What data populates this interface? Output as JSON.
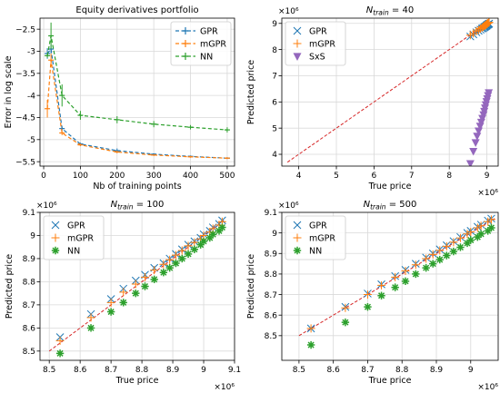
{
  "colors": {
    "GPR": "#1f77b4",
    "mGPR": "#ff7f0e",
    "NN": "#2ca02c",
    "SxS": "#9467bd",
    "diag": "#d62728",
    "grid": "#d9d9d9"
  },
  "chart_data": [
    {
      "type": "line",
      "title": "Equity derivatives portfolio",
      "xlabel": "Nb of training points",
      "ylabel": "Error in log scale",
      "xlim": [
        -10,
        520
      ],
      "ylim": [
        -5.6,
        -2.25
      ],
      "xticks": [
        0,
        100,
        200,
        300,
        400,
        500
      ],
      "yticks": [
        -5.5,
        -5.0,
        -4.5,
        -4.0,
        -3.5,
        -3.0,
        -2.5
      ],
      "grid": true,
      "legend": "top-right",
      "x": [
        10,
        20,
        50,
        100,
        200,
        300,
        400,
        500
      ],
      "series": [
        {
          "name": "GPR",
          "values": [
            -3.05,
            -2.95,
            -4.75,
            -5.1,
            -5.25,
            -5.33,
            -5.38,
            -5.42
          ],
          "err": [
            0.12,
            0.1,
            0.05,
            0.03,
            0.05,
            0.02,
            0.02,
            0.02
          ]
        },
        {
          "name": "mGPR",
          "values": [
            -4.3,
            -3.2,
            -4.85,
            -5.12,
            -5.28,
            -5.35,
            -5.39,
            -5.42
          ],
          "err": [
            0.2,
            0.15,
            0.05,
            0.03,
            0.03,
            0.02,
            0.02,
            0.02
          ]
        },
        {
          "name": "NN",
          "values": [
            -3.1,
            -2.65,
            -4.0,
            -4.45,
            -4.55,
            -4.65,
            -4.72,
            -4.78
          ],
          "err": [
            0.05,
            0.3,
            0.25,
            0.1,
            0.08,
            0.07,
            0.05,
            0.06
          ]
        }
      ]
    },
    {
      "type": "scatter",
      "title": "N_train = 40",
      "xlabel": "True price",
      "ylabel": "Predicted price",
      "xlim": [
        3.55,
        9.3
      ],
      "ylim": [
        3.55,
        9.2
      ],
      "xticks": [
        4,
        5,
        6,
        7,
        8,
        9
      ],
      "yticks": [
        4,
        5,
        6,
        7,
        8,
        9
      ],
      "x_multiplier": "×10⁶",
      "y_multiplier": "×10⁶",
      "grid": true,
      "legend": "top-left",
      "diagonal": [
        3.7,
        9.0
      ],
      "series": [
        {
          "name": "GPR",
          "marker": "x",
          "x": [
            8.56,
            8.64,
            8.72,
            8.78,
            8.83,
            8.87,
            8.9,
            8.93,
            8.95,
            8.97,
            8.99,
            9.0,
            9.02,
            9.03,
            9.05,
            9.06
          ],
          "y": [
            8.5,
            8.58,
            8.66,
            8.72,
            8.76,
            8.8,
            8.82,
            8.85,
            8.87,
            8.89,
            8.91,
            8.93,
            8.95,
            8.96,
            8.98,
            8.99
          ]
        },
        {
          "name": "mGPR",
          "marker": "+",
          "x": [
            8.56,
            8.64,
            8.72,
            8.78,
            8.83,
            8.87,
            8.9,
            8.93,
            8.95,
            8.97,
            8.99,
            9.0,
            9.02,
            9.03,
            9.05,
            9.06
          ],
          "y": [
            8.55,
            8.62,
            8.7,
            8.75,
            8.8,
            8.84,
            8.87,
            8.9,
            8.92,
            8.94,
            8.96,
            8.98,
            9.0,
            9.01,
            9.03,
            9.04
          ]
        },
        {
          "name": "SxS",
          "marker": "triangle-down",
          "x": [
            8.56,
            8.64,
            8.7,
            8.74,
            8.78,
            8.82,
            8.85,
            8.88,
            8.91,
            8.93,
            8.95,
            8.97,
            8.99,
            9.01,
            9.03,
            9.05
          ],
          "y": [
            3.65,
            4.12,
            4.45,
            4.7,
            4.9,
            5.08,
            5.23,
            5.38,
            5.52,
            5.65,
            5.78,
            5.9,
            6.02,
            6.13,
            6.25,
            6.36
          ]
        }
      ]
    },
    {
      "type": "scatter",
      "title": "N_train = 100",
      "xlabel": "True price",
      "ylabel": "Predicted price",
      "xlim": [
        8.47,
        9.1
      ],
      "ylim": [
        8.46,
        9.1
      ],
      "xticks": [
        8.5,
        8.6,
        8.7,
        8.8,
        8.9,
        9.0,
        9.1
      ],
      "yticks": [
        8.5,
        8.6,
        8.7,
        8.8,
        8.9,
        9.0,
        9.1
      ],
      "x_multiplier": "×10⁶",
      "y_multiplier": "×10⁶",
      "grid": true,
      "legend": "top-left",
      "diagonal": [
        8.5,
        9.07
      ],
      "series": [
        {
          "name": "GPR",
          "marker": "x",
          "x": [
            8.535,
            8.635,
            8.7,
            8.74,
            8.78,
            8.81,
            8.84,
            8.87,
            8.89,
            8.91,
            8.93,
            8.95,
            8.97,
            8.99,
            9.0,
            9.02,
            9.03,
            9.05,
            9.06
          ],
          "y": [
            8.56,
            8.66,
            8.725,
            8.77,
            8.805,
            8.83,
            8.86,
            8.88,
            8.9,
            8.92,
            8.94,
            8.96,
            8.975,
            8.99,
            9.005,
            9.02,
            9.035,
            9.05,
            9.065
          ]
        },
        {
          "name": "mGPR",
          "marker": "+",
          "x": [
            8.535,
            8.635,
            8.7,
            8.74,
            8.78,
            8.81,
            8.84,
            8.87,
            8.89,
            8.91,
            8.93,
            8.95,
            8.97,
            8.99,
            9.0,
            9.02,
            9.03,
            9.05,
            9.06
          ],
          "y": [
            8.545,
            8.645,
            8.71,
            8.755,
            8.79,
            8.82,
            8.85,
            8.875,
            8.895,
            8.915,
            8.935,
            8.955,
            8.97,
            8.985,
            9.0,
            9.015,
            9.03,
            9.045,
            9.06
          ]
        },
        {
          "name": "NN",
          "marker": "asterisk",
          "x": [
            8.535,
            8.635,
            8.7,
            8.74,
            8.78,
            8.81,
            8.84,
            8.87,
            8.89,
            8.91,
            8.93,
            8.95,
            8.97,
            8.99,
            9.0,
            9.02,
            9.03,
            9.05,
            9.06
          ],
          "y": [
            8.49,
            8.6,
            8.67,
            8.71,
            8.75,
            8.78,
            8.81,
            8.84,
            8.86,
            8.88,
            8.9,
            8.92,
            8.94,
            8.96,
            8.975,
            8.99,
            9.005,
            9.02,
            9.035
          ]
        }
      ]
    },
    {
      "type": "scatter",
      "title": "N_train = 500",
      "xlabel": "True price",
      "ylabel": "Predicted price",
      "xlim": [
        8.45,
        9.08
      ],
      "ylim": [
        8.38,
        9.1
      ],
      "xticks": [
        8.5,
        8.6,
        8.7,
        8.8,
        8.9,
        9.0
      ],
      "yticks": [
        8.5,
        8.6,
        8.7,
        8.8,
        8.9,
        9.0,
        9.1
      ],
      "x_multiplier": "×10⁶",
      "y_multiplier": "×10⁶",
      "grid": true,
      "legend": "top-left",
      "diagonal": [
        8.5,
        9.07
      ],
      "series": [
        {
          "name": "GPR",
          "marker": "x",
          "x": [
            8.535,
            8.635,
            8.7,
            8.74,
            8.78,
            8.81,
            8.84,
            8.87,
            8.89,
            8.91,
            8.93,
            8.95,
            8.97,
            8.99,
            9.0,
            9.02,
            9.03,
            9.05,
            9.06
          ],
          "y": [
            8.535,
            8.64,
            8.705,
            8.75,
            8.79,
            8.82,
            8.85,
            8.88,
            8.9,
            8.92,
            8.94,
            8.96,
            8.98,
            9.0,
            9.01,
            9.03,
            9.04,
            9.06,
            9.07
          ]
        },
        {
          "name": "mGPR",
          "marker": "+",
          "x": [
            8.535,
            8.635,
            8.7,
            8.74,
            8.78,
            8.81,
            8.84,
            8.87,
            8.89,
            8.91,
            8.93,
            8.95,
            8.97,
            8.99,
            9.0,
            9.02,
            9.03,
            9.05,
            9.06
          ],
          "y": [
            8.535,
            8.635,
            8.7,
            8.745,
            8.785,
            8.815,
            8.845,
            8.875,
            8.895,
            8.915,
            8.935,
            8.955,
            8.975,
            8.995,
            9.005,
            9.025,
            9.035,
            9.055,
            9.065
          ]
        },
        {
          "name": "NN",
          "marker": "asterisk",
          "x": [
            8.535,
            8.635,
            8.7,
            8.74,
            8.78,
            8.81,
            8.84,
            8.87,
            8.89,
            8.91,
            8.93,
            8.95,
            8.97,
            8.99,
            9.0,
            9.02,
            9.03,
            9.05,
            9.06
          ],
          "y": [
            8.455,
            8.565,
            8.64,
            8.695,
            8.735,
            8.765,
            8.8,
            8.83,
            8.85,
            8.87,
            8.89,
            8.91,
            8.93,
            8.95,
            8.965,
            8.98,
            8.995,
            9.01,
            9.025
          ]
        }
      ]
    }
  ]
}
